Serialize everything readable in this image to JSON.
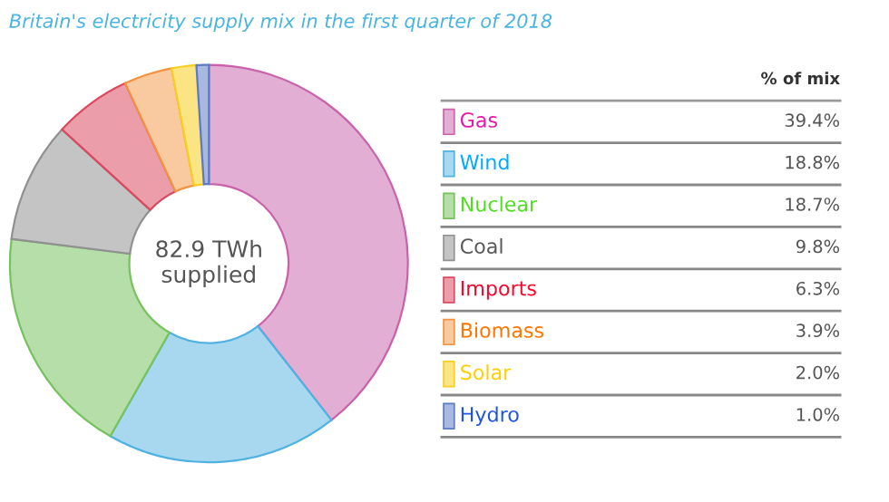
{
  "chart_data": {
    "type": "donut",
    "title": "Britain's electricity supply mix in the first quarter of 2018",
    "categories": [
      "Gas",
      "Wind",
      "Nuclear",
      "Coal",
      "Imports",
      "Biomass",
      "Solar",
      "Hydro"
    ],
    "values": [
      39.4,
      18.8,
      18.7,
      9.8,
      6.3,
      3.9,
      2.0,
      1.0
    ],
    "colors": [
      "#e3aed3",
      "#a8d8f0",
      "#b5dea8",
      "#c4c4c4",
      "#eb9eaa",
      "#f9c9a0",
      "#fbe484",
      "#a8b8e0"
    ],
    "value_labels": [
      "39.4%",
      "18.8%",
      "18.7%",
      "9.8%",
      "6.3%",
      "3.9%",
      "2.0%",
      "1.0%"
    ],
    "legend_title": "% of mix",
    "legend": "right",
    "annotations": [
      "82.9 TWh\nsupplied"
    ]
  }
}
